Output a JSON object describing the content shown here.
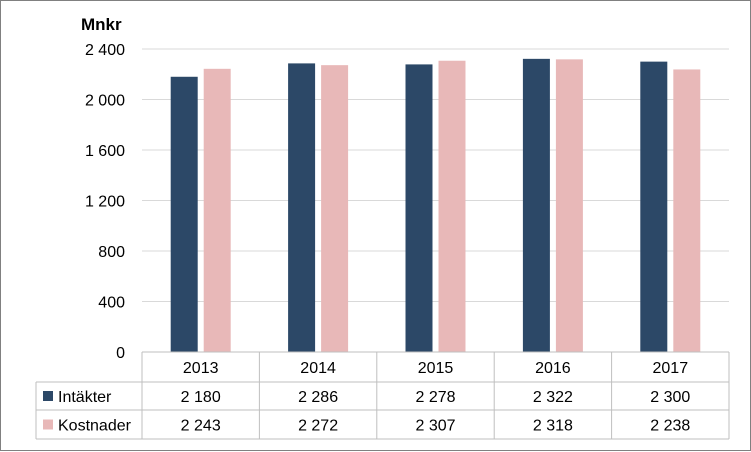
{
  "chart_data": {
    "type": "bar",
    "ylabel": "Mnkr",
    "categories": [
      "2013",
      "2014",
      "2015",
      "2016",
      "2017"
    ],
    "series": [
      {
        "name": "Intäkter",
        "color": "#2C4867",
        "values": [
          2180,
          2286,
          2278,
          2322,
          2300
        ],
        "labels": [
          "2 180",
          "2 286",
          "2 278",
          "2 322",
          "2 300"
        ]
      },
      {
        "name": "Kostnader",
        "color": "#E8B8B8",
        "values": [
          2243,
          2272,
          2307,
          2318,
          2238
        ],
        "labels": [
          "2 243",
          "2 272",
          "2 307",
          "2 318",
          "2 238"
        ]
      }
    ],
    "ylim": [
      0,
      2400
    ],
    "yticks": [
      0,
      400,
      800,
      1200,
      1600,
      2000,
      2400
    ],
    "ytick_labels": [
      "0",
      "400",
      "800",
      "1 200",
      "1 600",
      "2 000",
      "2 400"
    ],
    "grid": true,
    "data_table": true
  }
}
